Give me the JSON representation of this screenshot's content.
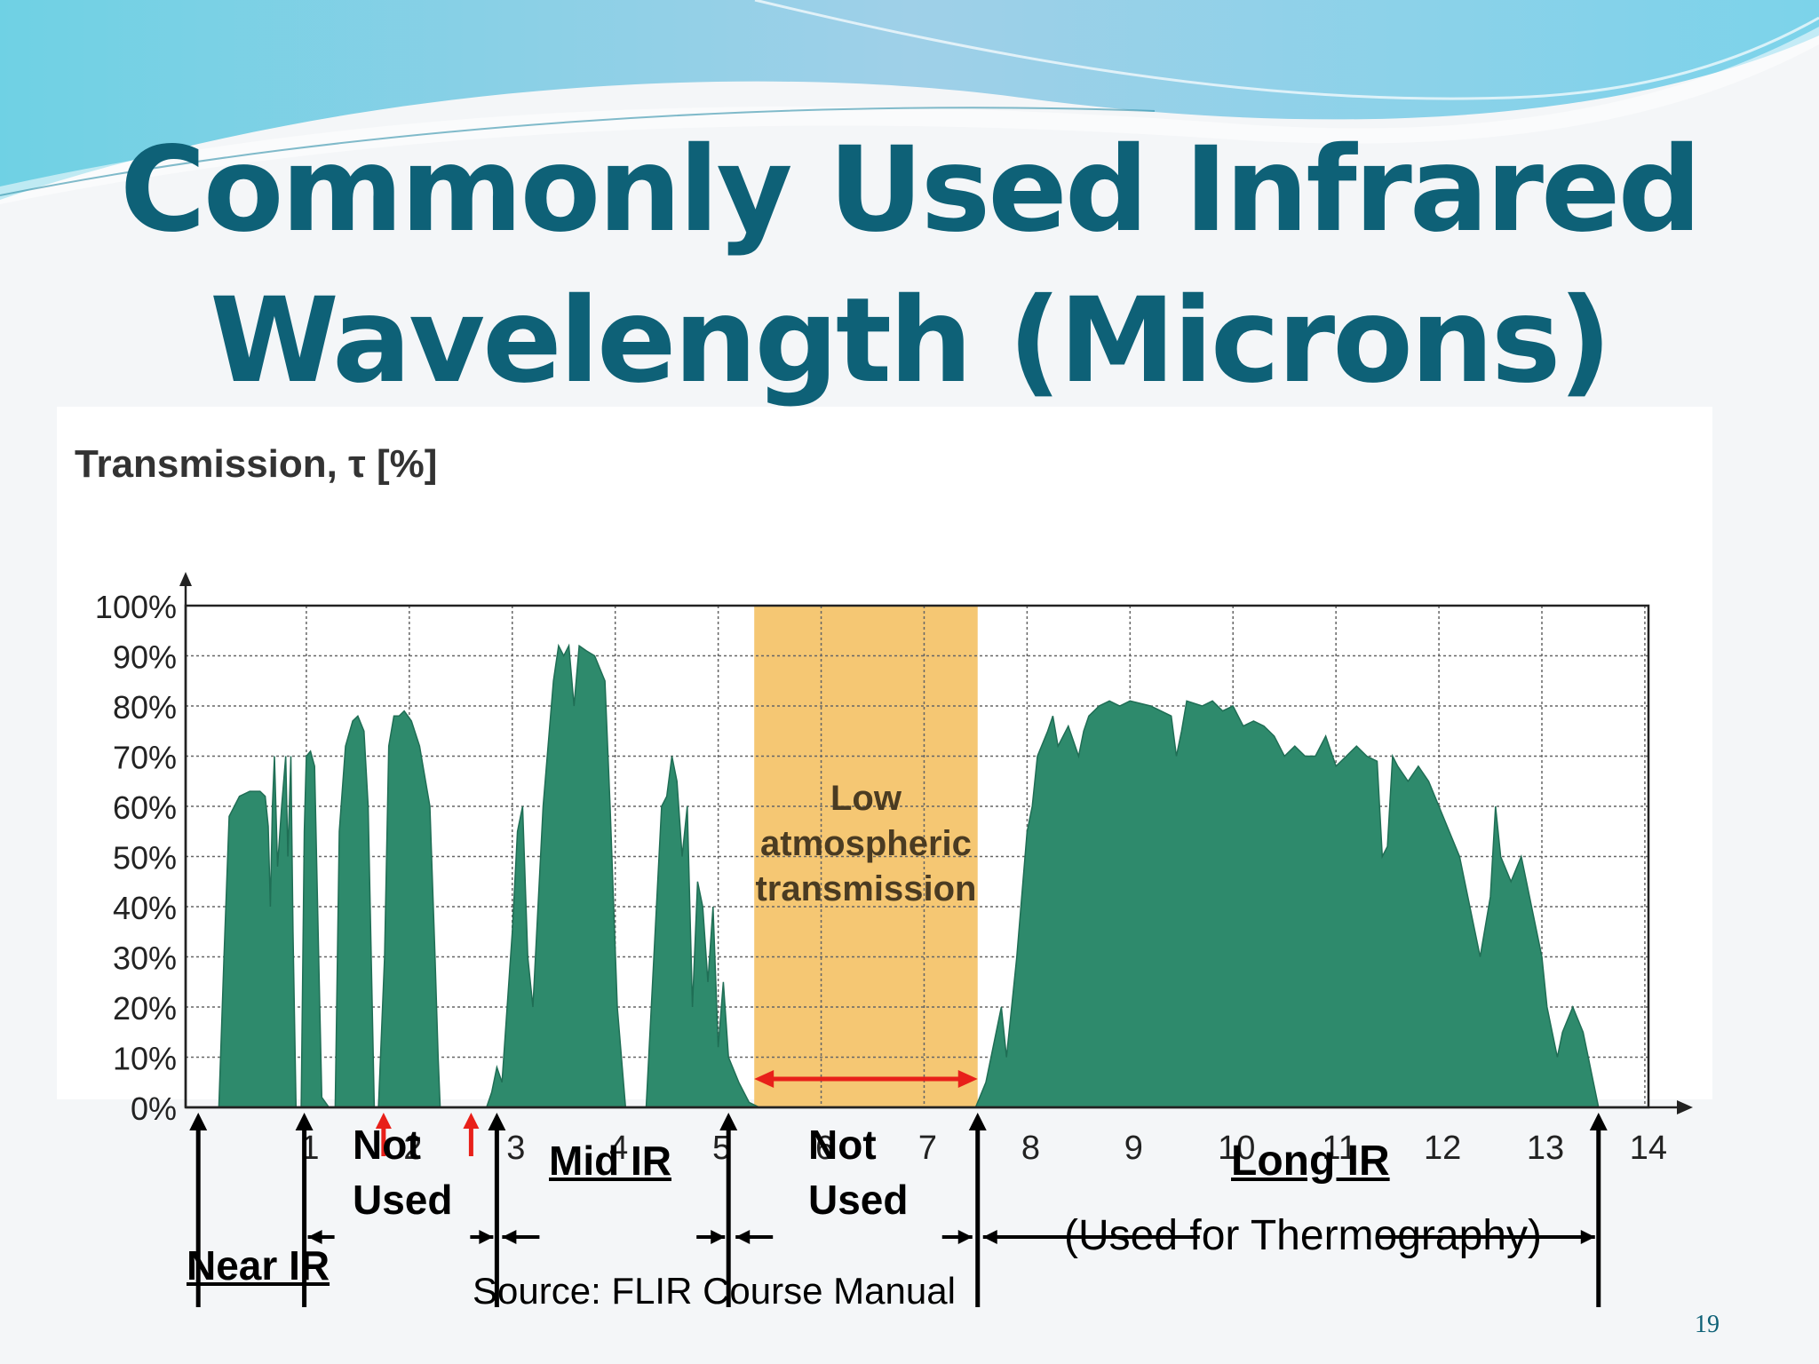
{
  "slide": {
    "title_line1": "Commonly Used Infrared",
    "title_line2": "Wavelength (Microns)",
    "source": "Source: FLIR Course Manual",
    "slide_number": "19",
    "colors": {
      "title": "#0e6177",
      "fill": "#2e8a6c",
      "band": "#f5c773",
      "red_arrow": "#e8201a"
    }
  },
  "chart_data": {
    "type": "area",
    "title": "",
    "ylabel": "Transmission, τ  [%]",
    "xlabel": "",
    "xlim": [
      0,
      14
    ],
    "ylim": [
      0,
      100
    ],
    "grid": true,
    "x_ticks": [
      1,
      2,
      3,
      4,
      5,
      6,
      7,
      8,
      9,
      10,
      11,
      12,
      13,
      14
    ],
    "y_ticks": [
      "0%",
      "10%",
      "20%",
      "30%",
      "40%",
      "50%",
      "60%",
      "70%",
      "80%",
      "90%",
      "100%"
    ],
    "series": [
      {
        "points": [
          [
            0.15,
            0
          ],
          [
            0.2,
            30
          ],
          [
            0.25,
            58
          ],
          [
            0.35,
            62
          ],
          [
            0.45,
            63
          ],
          [
            0.55,
            63
          ],
          [
            0.6,
            62
          ],
          [
            0.63,
            56
          ],
          [
            0.65,
            40
          ],
          [
            0.67,
            60
          ],
          [
            0.69,
            70
          ],
          [
            0.72,
            48
          ],
          [
            0.76,
            60
          ],
          [
            0.8,
            70
          ],
          [
            0.82,
            50
          ],
          [
            0.85,
            70
          ],
          [
            0.87,
            35
          ],
          [
            0.9,
            0
          ],
          [
            0.95,
            0
          ],
          [
            0.98,
            55
          ],
          [
            1.0,
            70
          ],
          [
            1.04,
            71
          ],
          [
            1.08,
            68
          ],
          [
            1.12,
            30
          ],
          [
            1.15,
            2
          ],
          [
            1.22,
            0
          ],
          [
            1.28,
            0
          ],
          [
            1.32,
            55
          ],
          [
            1.38,
            72
          ],
          [
            1.45,
            77
          ],
          [
            1.5,
            78
          ],
          [
            1.56,
            75
          ],
          [
            1.6,
            60
          ],
          [
            1.64,
            20
          ],
          [
            1.66,
            0
          ],
          [
            1.7,
            0
          ],
          [
            1.76,
            30
          ],
          [
            1.8,
            72
          ],
          [
            1.85,
            78
          ],
          [
            1.9,
            78
          ],
          [
            1.95,
            79
          ],
          [
            2.02,
            77
          ],
          [
            2.1,
            72
          ],
          [
            2.2,
            60
          ],
          [
            2.25,
            30
          ],
          [
            2.28,
            10
          ],
          [
            2.3,
            0
          ],
          [
            2.75,
            0
          ],
          [
            2.8,
            3
          ],
          [
            2.85,
            8
          ],
          [
            2.9,
            5
          ],
          [
            2.95,
            20
          ],
          [
            3.0,
            35
          ],
          [
            3.05,
            55
          ],
          [
            3.1,
            60
          ],
          [
            3.15,
            30
          ],
          [
            3.2,
            20
          ],
          [
            3.3,
            60
          ],
          [
            3.4,
            85
          ],
          [
            3.45,
            92
          ],
          [
            3.5,
            90
          ],
          [
            3.55,
            92
          ],
          [
            3.6,
            80
          ],
          [
            3.65,
            92
          ],
          [
            3.72,
            91
          ],
          [
            3.8,
            90
          ],
          [
            3.9,
            85
          ],
          [
            3.95,
            60
          ],
          [
            4.02,
            20
          ],
          [
            4.1,
            0
          ],
          [
            4.3,
            0
          ],
          [
            4.35,
            20
          ],
          [
            4.4,
            40
          ],
          [
            4.45,
            60
          ],
          [
            4.5,
            62
          ],
          [
            4.55,
            70
          ],
          [
            4.6,
            65
          ],
          [
            4.65,
            50
          ],
          [
            4.7,
            60
          ],
          [
            4.75,
            20
          ],
          [
            4.8,
            45
          ],
          [
            4.85,
            40
          ],
          [
            4.9,
            25
          ],
          [
            4.95,
            40
          ],
          [
            5.0,
            12
          ],
          [
            5.05,
            25
          ],
          [
            5.1,
            10
          ],
          [
            5.2,
            5
          ],
          [
            5.3,
            1
          ],
          [
            5.4,
            0
          ],
          [
            7.5,
            0
          ],
          [
            7.6,
            5
          ],
          [
            7.7,
            15
          ],
          [
            7.75,
            20
          ],
          [
            7.8,
            10
          ],
          [
            7.9,
            30
          ],
          [
            8.0,
            55
          ],
          [
            8.05,
            60
          ],
          [
            8.1,
            70
          ],
          [
            8.2,
            75
          ],
          [
            8.25,
            78
          ],
          [
            8.3,
            72
          ],
          [
            8.4,
            76
          ],
          [
            8.5,
            70
          ],
          [
            8.55,
            75
          ],
          [
            8.6,
            78
          ],
          [
            8.7,
            80
          ],
          [
            8.8,
            81
          ],
          [
            8.9,
            80
          ],
          [
            9.0,
            81
          ],
          [
            9.2,
            80
          ],
          [
            9.4,
            78
          ],
          [
            9.45,
            70
          ],
          [
            9.5,
            75
          ],
          [
            9.55,
            81
          ],
          [
            9.7,
            80
          ],
          [
            9.8,
            81
          ],
          [
            9.9,
            79
          ],
          [
            10.0,
            80
          ],
          [
            10.1,
            76
          ],
          [
            10.2,
            77
          ],
          [
            10.3,
            76
          ],
          [
            10.4,
            74
          ],
          [
            10.5,
            70
          ],
          [
            10.6,
            72
          ],
          [
            10.7,
            70
          ],
          [
            10.8,
            70
          ],
          [
            10.9,
            74
          ],
          [
            11.0,
            68
          ],
          [
            11.1,
            70
          ],
          [
            11.2,
            72
          ],
          [
            11.3,
            70
          ],
          [
            11.4,
            69
          ],
          [
            11.45,
            50
          ],
          [
            11.5,
            52
          ],
          [
            11.55,
            70
          ],
          [
            11.6,
            68
          ],
          [
            11.7,
            65
          ],
          [
            11.8,
            68
          ],
          [
            11.9,
            65
          ],
          [
            12.0,
            60
          ],
          [
            12.1,
            55
          ],
          [
            12.2,
            50
          ],
          [
            12.3,
            40
          ],
          [
            12.4,
            30
          ],
          [
            12.5,
            42
          ],
          [
            12.55,
            60
          ],
          [
            12.6,
            50
          ],
          [
            12.7,
            45
          ],
          [
            12.8,
            50
          ],
          [
            12.9,
            40
          ],
          [
            13.0,
            30
          ],
          [
            13.05,
            20
          ],
          [
            13.1,
            15
          ],
          [
            13.15,
            10
          ],
          [
            13.2,
            15
          ],
          [
            13.3,
            20
          ],
          [
            13.4,
            15
          ],
          [
            13.5,
            5
          ],
          [
            13.55,
            0
          ]
        ]
      }
    ],
    "annotations": {
      "band_label_lines": [
        "Low",
        "atmospheric",
        "transmission"
      ],
      "band_range": [
        5.35,
        7.52
      ],
      "red_arrow_positions": [
        1.75,
        2.6
      ],
      "black_arrow_positions": [
        -0.05,
        0.98,
        2.85,
        5.1,
        7.52,
        13.55
      ],
      "regions": {
        "near_ir": "Near IR",
        "not_used_1": [
          "Not",
          "Used"
        ],
        "mid_ir": "Mid IR",
        "not_used_2": [
          "Not",
          "Used"
        ],
        "long_ir": "Long IR",
        "long_ir_note": "(Used for Thermography)"
      }
    }
  }
}
